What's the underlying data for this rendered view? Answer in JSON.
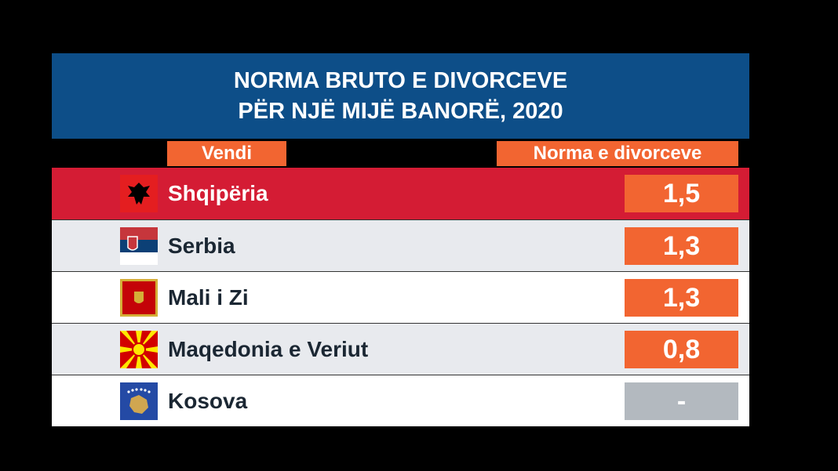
{
  "header": {
    "title": [
      "NORMA BRUTO E DIVORCEVE",
      "PËR NJË MIJË BANORË, 2020"
    ]
  },
  "table": {
    "columns": [
      "Vendi",
      "Norma e divorceve"
    ],
    "rows": [
      [
        "Shqipëria",
        "1,5"
      ],
      [
        "Serbia",
        "1,3"
      ],
      [
        "Mali i Zi",
        "1,3"
      ],
      [
        "Maqedonia e Veriut",
        "0,8"
      ],
      [
        "Kosova",
        "-"
      ]
    ]
  }
}
